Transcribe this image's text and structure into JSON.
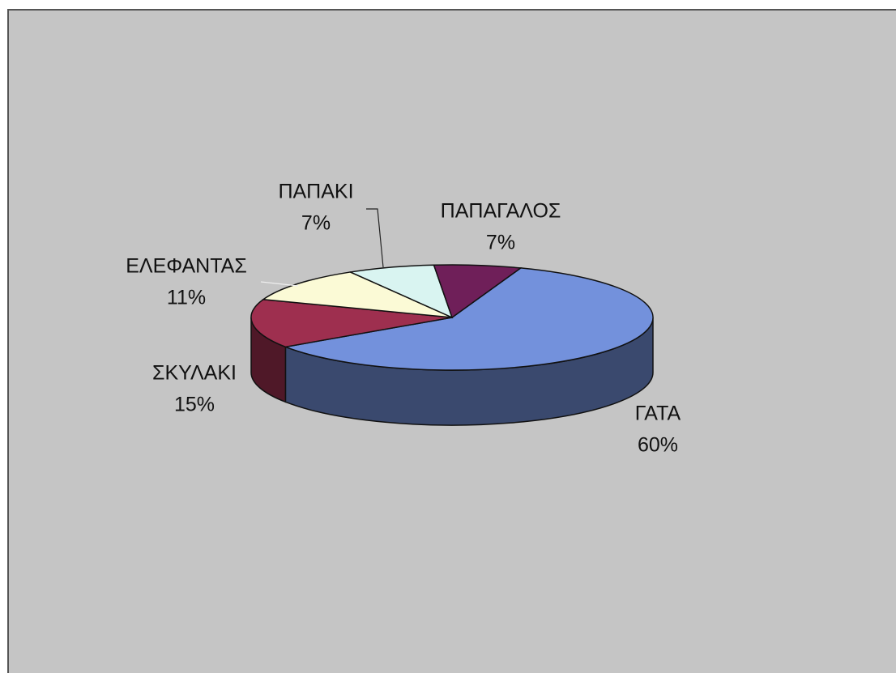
{
  "chart_data": {
    "type": "pie",
    "categories": [
      "ΓΑΤΑ",
      "ΣΚΥΛΑΚΙ",
      "ΕΛΕΦΑΝΤΑΣ",
      "ΠΑΠΑΚΙ",
      "ΠΑΠΑΓΑΛΟΣ"
    ],
    "values": [
      60,
      15,
      11,
      7,
      7
    ],
    "value_labels": [
      "60%",
      "15%",
      "11%",
      "7%",
      "7%"
    ],
    "colors": [
      "#7391dc",
      "#9e2f4f",
      "#fbfad6",
      "#d9f4f1",
      "#6f1f59"
    ]
  }
}
